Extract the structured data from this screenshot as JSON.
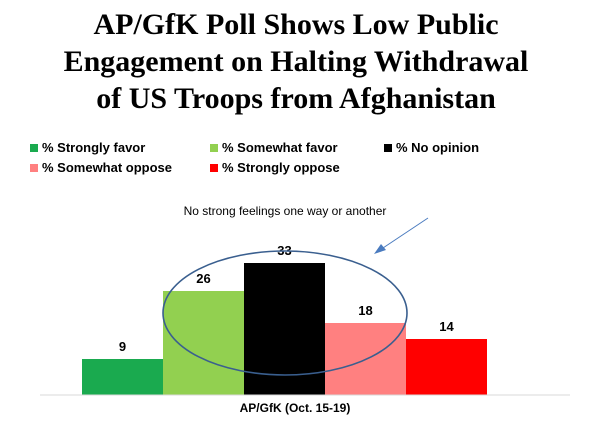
{
  "title_lines": [
    "AP/GfK Poll Shows Low Public",
    "Engagement on Halting Withdrawal",
    "of US Troops from Afghanistan"
  ],
  "annotation": "No strong feelings one way or another",
  "chart_data": {
    "type": "bar",
    "title": "AP/GfK Poll Shows Low Public Engagement on Halting Withdrawal of US Troops from Afghanistan",
    "categories": [
      "AP/GfK (Oct. 15-19)"
    ],
    "series": [
      {
        "name": "% Strongly favor",
        "values": [
          9
        ],
        "color": "#1aaa4f"
      },
      {
        "name": "% Somewhat favor",
        "values": [
          26
        ],
        "color": "#92d050"
      },
      {
        "name": "% No opinion",
        "values": [
          33
        ],
        "color": "#000000"
      },
      {
        "name": "% Somewhat oppose",
        "values": [
          18
        ],
        "color": "#ff8080"
      },
      {
        "name": "% Strongly oppose",
        "values": [
          14
        ],
        "color": "#ff0000"
      }
    ],
    "data_labels": true,
    "legend_position": "top-left",
    "grid": false,
    "ylim": [
      0,
      40
    ]
  }
}
